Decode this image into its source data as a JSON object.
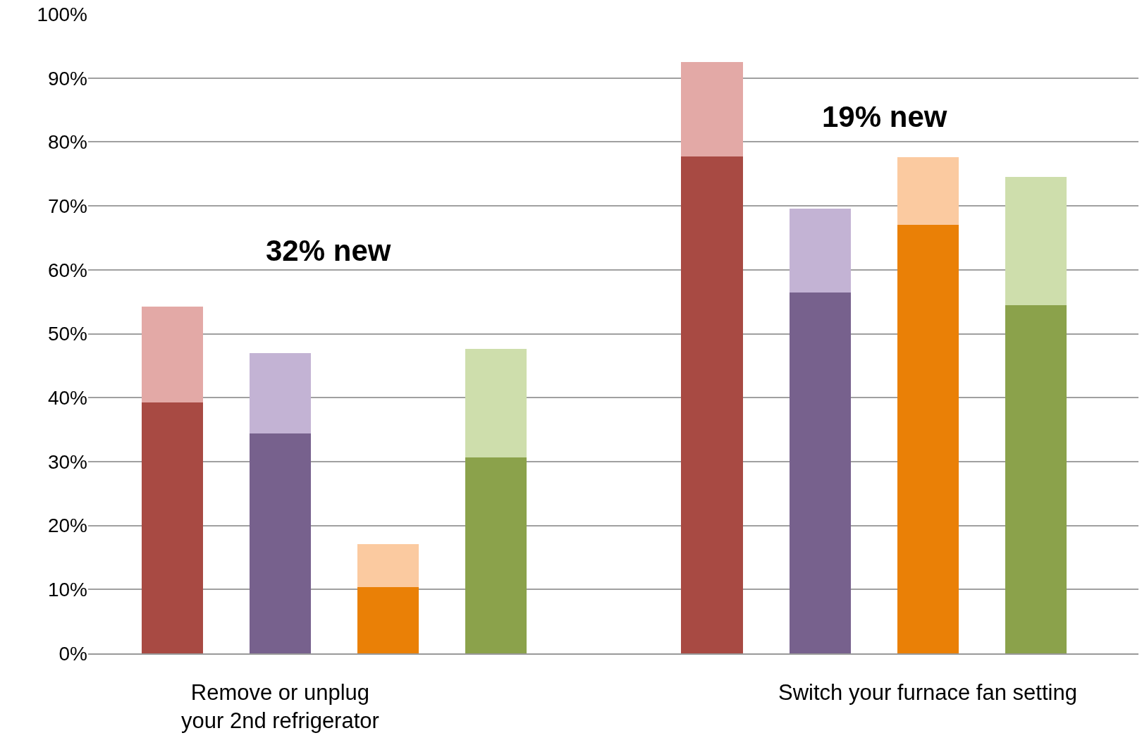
{
  "chart_data": {
    "type": "bar",
    "stacked": true,
    "categories": [
      null,
      null,
      null,
      null,
      null,
      null,
      null,
      null,
      null
    ],
    "series": [
      {
        "values": [
          39.2,
          34.4,
          10.4,
          30.6,
          null,
          77.7,
          56.5,
          67.0,
          54.5
        ],
        "colors": [
          "#a84a43",
          "#77618d",
          "#ea8006",
          "#8ba24b",
          null,
          "#a84a43",
          "#77618d",
          "#ea8006",
          "#8ba24b"
        ]
      },
      {
        "values": [
          15.0,
          12.6,
          6.7,
          17.0,
          null,
          14.8,
          13.1,
          10.6,
          20.0
        ],
        "colors": [
          "#e3a9a6",
          "#c3b3d4",
          "#fbcaa0",
          "#cedeac",
          null,
          "#e3a9a6",
          "#c3b3d4",
          "#fbcaa0",
          "#cedeac"
        ]
      }
    ],
    "annotations": [
      "19% new",
      "32% new",
      "Remove or unplug\nyour 2nd refrigerator",
      "Switch your furnace fan setting"
    ],
    "ylim": [
      0,
      100
    ],
    "yticks": [
      {
        "value": 0,
        "label": "0%"
      },
      {
        "value": 10,
        "label": "10%"
      },
      {
        "value": 20,
        "label": "20%"
      },
      {
        "value": 30,
        "label": "30%"
      },
      {
        "value": 40,
        "label": "40%"
      },
      {
        "value": 50,
        "label": "50%"
      },
      {
        "value": 60,
        "label": "60%"
      },
      {
        "value": 70,
        "label": "70%"
      },
      {
        "value": 80,
        "label": "80%"
      },
      {
        "value": 90,
        "label": "90%"
      },
      {
        "value": 100,
        "label": "100%"
      }
    ],
    "grid": "y"
  }
}
